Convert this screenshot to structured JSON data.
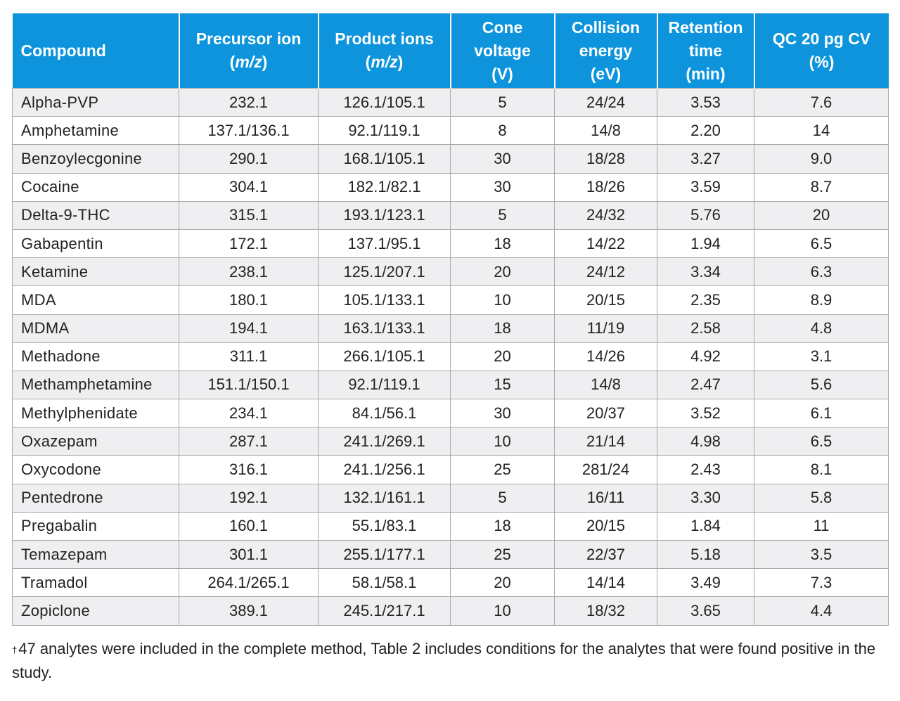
{
  "headers": {
    "compound": "Compound",
    "precursor": {
      "line1": "Precursor ion",
      "paren_open": "(",
      "unit": "m/z",
      "paren_close": ")"
    },
    "product": {
      "line1": "Product ions",
      "paren_open": "(",
      "unit": "m/z",
      "paren_close": ")"
    },
    "cone": {
      "line1": "Cone",
      "line2": "voltage",
      "line3": "(V)"
    },
    "collision": {
      "line1": "Collision",
      "line2": "energy",
      "line3": "(eV)"
    },
    "retention": {
      "line1": "Retention",
      "line2": "time",
      "line3": "(min)"
    },
    "qc": {
      "line1": "QC 20 pg CV",
      "line2": "(%)"
    }
  },
  "rows": [
    {
      "compound": "Alpha-PVP",
      "precursor": "232.1",
      "product": "126.1/105.1",
      "cone": "5",
      "collision": "24/24",
      "retention": "3.53",
      "qc": "7.6"
    },
    {
      "compound": "Amphetamine",
      "precursor": "137.1/136.1",
      "product": "92.1/119.1",
      "cone": "8",
      "collision": "14/8",
      "retention": "2.20",
      "qc": "14"
    },
    {
      "compound": "Benzoylecgonine",
      "precursor": "290.1",
      "product": "168.1/105.1",
      "cone": "30",
      "collision": "18/28",
      "retention": "3.27",
      "qc": "9.0"
    },
    {
      "compound": "Cocaine",
      "precursor": "304.1",
      "product": "182.1/82.1",
      "cone": "30",
      "collision": "18/26",
      "retention": "3.59",
      "qc": "8.7"
    },
    {
      "compound": "Delta-9-THC",
      "precursor": "315.1",
      "product": "193.1/123.1",
      "cone": "5",
      "collision": "24/32",
      "retention": "5.76",
      "qc": "20"
    },
    {
      "compound": "Gabapentin",
      "precursor": "172.1",
      "product": "137.1/95.1",
      "cone": "18",
      "collision": "14/22",
      "retention": "1.94",
      "qc": "6.5"
    },
    {
      "compound": "Ketamine",
      "precursor": "238.1",
      "product": "125.1/207.1",
      "cone": "20",
      "collision": "24/12",
      "retention": "3.34",
      "qc": "6.3"
    },
    {
      "compound": "MDA",
      "precursor": "180.1",
      "product": "105.1/133.1",
      "cone": "10",
      "collision": "20/15",
      "retention": "2.35",
      "qc": "8.9"
    },
    {
      "compound": "MDMA",
      "precursor": "194.1",
      "product": "163.1/133.1",
      "cone": "18",
      "collision": "11/19",
      "retention": "2.58",
      "qc": "4.8"
    },
    {
      "compound": "Methadone",
      "precursor": "311.1",
      "product": "266.1/105.1",
      "cone": "20",
      "collision": "14/26",
      "retention": "4.92",
      "qc": "3.1"
    },
    {
      "compound": "Methamphetamine",
      "precursor": "151.1/150.1",
      "product": "92.1/119.1",
      "cone": "15",
      "collision": "14/8",
      "retention": "2.47",
      "qc": "5.6"
    },
    {
      "compound": "Methylphenidate",
      "precursor": "234.1",
      "product": "84.1/56.1",
      "cone": "30",
      "collision": "20/37",
      "retention": "3.52",
      "qc": "6.1"
    },
    {
      "compound": "Oxazepam",
      "precursor": "287.1",
      "product": "241.1/269.1",
      "cone": "10",
      "collision": "21/14",
      "retention": "4.98",
      "qc": "6.5"
    },
    {
      "compound": "Oxycodone",
      "precursor": "316.1",
      "product": "241.1/256.1",
      "cone": "25",
      "collision": "281/24",
      "retention": "2.43",
      "qc": "8.1"
    },
    {
      "compound": "Pentedrone",
      "precursor": "192.1",
      "product": "132.1/161.1",
      "cone": "5",
      "collision": "16/11",
      "retention": "3.30",
      "qc": "5.8"
    },
    {
      "compound": "Pregabalin",
      "precursor": "160.1",
      "product": "55.1/83.1",
      "cone": "18",
      "collision": "20/15",
      "retention": "1.84",
      "qc": "11"
    },
    {
      "compound": "Temazepam",
      "precursor": "301.1",
      "product": "255.1/177.1",
      "cone": "25",
      "collision": "22/37",
      "retention": "5.18",
      "qc": "3.5"
    },
    {
      "compound": "Tramadol",
      "precursor": "264.1/265.1",
      "product": "58.1/58.1",
      "cone": "20",
      "collision": "14/14",
      "retention": "3.49",
      "qc": "7.3"
    },
    {
      "compound": "Zopiclone",
      "precursor": "389.1",
      "product": "245.1/217.1",
      "cone": "10",
      "collision": "18/32",
      "retention": "3.65",
      "qc": "4.4"
    }
  ],
  "footnote": {
    "marker": "†",
    "text": "47 analytes were included in the complete method, Table 2 includes conditions for the analytes that were found positive in the study."
  }
}
